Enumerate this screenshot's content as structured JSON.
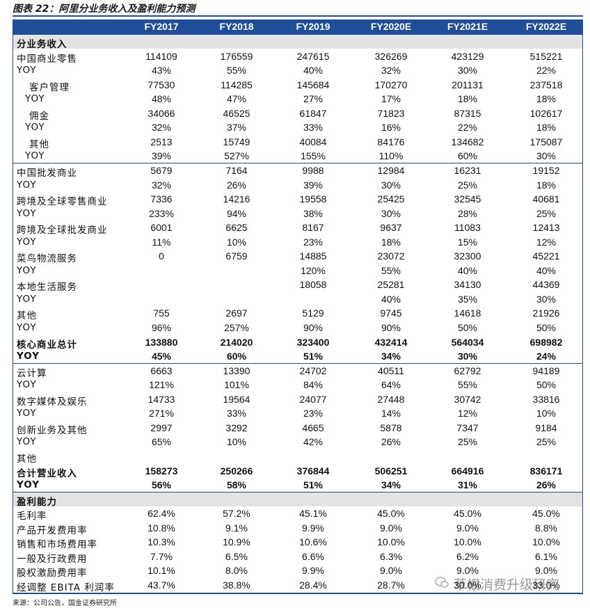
{
  "header": {
    "title": "图表 22：阿里分业务收入及盈利能力预测"
  },
  "table": {
    "columns": [
      "FY2017",
      "FY2018",
      "FY2019",
      "FY2020E",
      "FY2021E",
      "FY2022E"
    ],
    "rows": [
      [
        "分业务收入"
      ],
      [
        "中国商业零售",
        "114109",
        "176559",
        "247615",
        "326269",
        "423129",
        "515221"
      ],
      [
        "YOY",
        "43%",
        "55%",
        "40%",
        "32%",
        "30%",
        "22%"
      ],
      [
        "客户管理",
        "77530",
        "114285",
        "145684",
        "170270",
        "201131",
        "237518"
      ],
      [
        "YOY",
        "48%",
        "47%",
        "27%",
        "17%",
        "18%",
        "18%"
      ],
      [
        "佣金",
        "34066",
        "46525",
        "61847",
        "71823",
        "87315",
        "102617"
      ],
      [
        "YOY",
        "32%",
        "37%",
        "33%",
        "16%",
        "22%",
        "18%"
      ],
      [
        "其他",
        "2513",
        "15749",
        "40084",
        "84176",
        "134682",
        "175087"
      ],
      [
        "YOY",
        "39%",
        "527%",
        "155%",
        "110%",
        "60%",
        "30%"
      ],
      [
        "中国批发商业",
        "5679",
        "7164",
        "9988",
        "12984",
        "16231",
        "19152"
      ],
      [
        "YOY",
        "32%",
        "26%",
        "39%",
        "30%",
        "25%",
        "18%"
      ],
      [
        "跨境及全球零售商业",
        "7336",
        "14216",
        "19558",
        "25425",
        "32545",
        "40681"
      ],
      [
        "YOY",
        "233%",
        "94%",
        "38%",
        "30%",
        "28%",
        "25%"
      ],
      [
        "跨境及全球批发商业",
        "6001",
        "6625",
        "8167",
        "9637",
        "11083",
        "12413"
      ],
      [
        "YOY",
        "11%",
        "10%",
        "23%",
        "18%",
        "15%",
        "12%"
      ],
      [
        "菜鸟物流服务",
        "0",
        "6759",
        "14885",
        "23072",
        "32300",
        "45221"
      ],
      [
        "YOY",
        null,
        null,
        "120%",
        "55%",
        "40%",
        "40%"
      ],
      [
        "本地生活服务",
        null,
        null,
        "18058",
        "25281",
        "34130",
        "44369"
      ],
      [
        "YOY",
        null,
        null,
        null,
        "40%",
        "35%",
        "30%"
      ],
      [
        "其他",
        "755",
        "2697",
        "5129",
        "9745",
        "14618",
        "21926"
      ],
      [
        "YOY",
        "96%",
        "257%",
        "90%",
        "90%",
        "50%",
        "50%"
      ],
      [
        "核心商业总计",
        "133880",
        "214020",
        "323400",
        "432414",
        "564034",
        "698982"
      ],
      [
        "YOY",
        "45%",
        "60%",
        "51%",
        "34%",
        "30%",
        "24%"
      ],
      [
        "云计算",
        "6663",
        "13390",
        "24702",
        "40511",
        "62792",
        "94189"
      ],
      [
        "YOY",
        "121%",
        "101%",
        "84%",
        "64%",
        "55%",
        "50%"
      ],
      [
        "数字媒体及娱乐",
        "14733",
        "19564",
        "24077",
        "27448",
        "30742",
        "33816"
      ],
      [
        "YOY",
        "271%",
        "33%",
        "23%",
        "14%",
        "12%",
        "10%"
      ],
      [
        "创新业务及其他",
        "2997",
        "3292",
        "4665",
        "5878",
        "7347",
        "9184"
      ],
      [
        "YOY",
        "65%",
        "10%",
        "42%",
        "26%",
        "25%",
        "25%"
      ],
      [
        "其他"
      ],
      [
        "合计营业收入",
        "158273",
        "250266",
        "376844",
        "506251",
        "664916",
        "836171"
      ],
      [
        "YOY",
        "56%",
        "58%",
        "51%",
        "34%",
        "31%",
        "26%"
      ],
      [
        "盈利能力"
      ],
      [
        "毛利率",
        "62.4%",
        "57.2%",
        "45.1%",
        "45.0%",
        "45.0%",
        "45.0%"
      ],
      [
        "产品开发费用率",
        "10.8%",
        "9.1%",
        "9.9%",
        "9.0%",
        "9.0%",
        "8.8%"
      ],
      [
        "销售和市场费用率",
        "10.3%",
        "10.9%",
        "10.6%",
        "10.0%",
        "10.0%",
        "10.0%"
      ],
      [
        "一般及行政费用",
        "7.7%",
        "6.5%",
        "6.6%",
        "6.3%",
        "6.2%",
        "6.1%"
      ],
      [
        "股权激励费用率",
        "10.1%",
        "8.0%",
        "9.9%",
        "9.0%",
        "9.0%",
        "9.0%"
      ],
      [
        "经调整 EBITA 利润率",
        "43.7%",
        "38.8%",
        "28.4%",
        "28.7%",
        "30.0%",
        "33.0%"
      ]
    ]
  },
  "footer": {
    "source": "来源：公司公告，国金证券研究所",
    "watermark": "草根消费升级研究"
  }
}
